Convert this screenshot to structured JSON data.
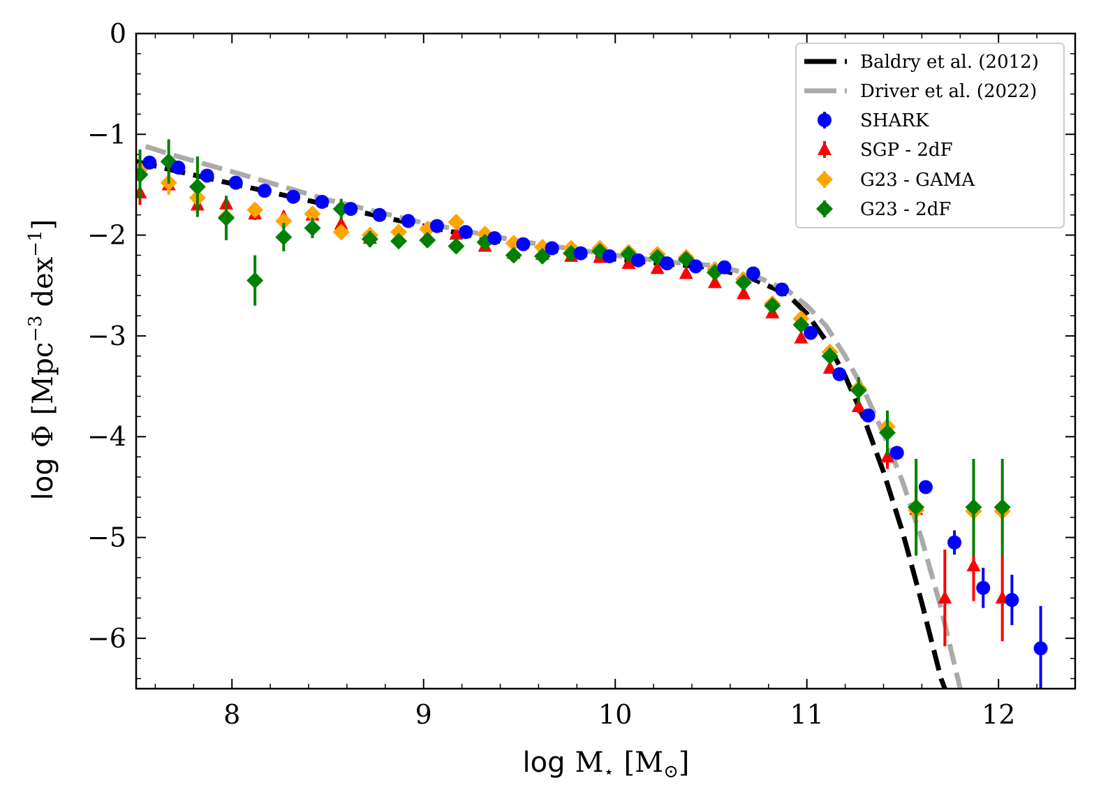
{
  "chart_data": {
    "type": "scatter",
    "title": "",
    "xlabel_parts": {
      "prefix": "log",
      "symbol": "M",
      "sub": "⋆",
      "unit_open": "[M",
      "unit_sub": "⊙",
      "unit_close": "]"
    },
    "ylabel_parts": {
      "prefix": "log",
      "symbol": "Φ",
      "unit_a": "[Mpc",
      "sup_a": "−3",
      "unit_b": "dex",
      "sup_b": "−1",
      "unit_close": "]"
    },
    "xlim": [
      7.5,
      12.4
    ],
    "ylim": [
      -6.5,
      0
    ],
    "xticks": [
      8,
      9,
      10,
      11,
      12
    ],
    "yticks": [
      0,
      -1,
      -2,
      -3,
      -4,
      -5,
      -6
    ],
    "xtick_labels": [
      "8",
      "9",
      "10",
      "11",
      "12"
    ],
    "ytick_labels": [
      "0",
      "−1",
      "−2",
      "−3",
      "−4",
      "−5",
      "−6"
    ],
    "legend_position": "top-right",
    "curves": [
      {
        "name": "Baldry et al. (2012)",
        "color": "#000000",
        "style": "dashed",
        "x": [
          7.5,
          7.7,
          8.0,
          8.5,
          9.0,
          9.5,
          10.0,
          10.3,
          10.5,
          10.7,
          10.9,
          11.0,
          11.1,
          11.2,
          11.3,
          11.4,
          11.5,
          11.6,
          11.7,
          11.73
        ],
        "y": [
          -1.27,
          -1.36,
          -1.49,
          -1.7,
          -1.91,
          -2.1,
          -2.24,
          -2.29,
          -2.32,
          -2.42,
          -2.59,
          -2.78,
          -3.05,
          -3.4,
          -3.83,
          -4.35,
          -4.95,
          -5.65,
          -6.4,
          -6.55
        ]
      },
      {
        "name": "Driver et al. (2022)",
        "color": "#aaaaaa",
        "style": "dashed",
        "x": [
          7.55,
          7.7,
          8.0,
          8.5,
          9.0,
          9.5,
          10.0,
          10.3,
          10.5,
          10.7,
          10.9,
          11.0,
          11.1,
          11.2,
          11.3,
          11.4,
          11.5,
          11.6,
          11.7,
          11.8
        ],
        "y": [
          -1.12,
          -1.21,
          -1.37,
          -1.65,
          -1.88,
          -2.06,
          -2.2,
          -2.27,
          -2.3,
          -2.38,
          -2.55,
          -2.7,
          -2.9,
          -3.2,
          -3.55,
          -3.97,
          -4.45,
          -5.02,
          -5.7,
          -6.5
        ]
      }
    ],
    "series": [
      {
        "name": "SHARK",
        "color": "#0000ff",
        "marker": "circle",
        "points": [
          {
            "x": 7.57,
            "y": -1.28,
            "err": 0.04
          },
          {
            "x": 7.72,
            "y": -1.33,
            "err": 0.04
          },
          {
            "x": 7.87,
            "y": -1.41,
            "err": 0.04
          },
          {
            "x": 8.02,
            "y": -1.48,
            "err": 0.03
          },
          {
            "x": 8.17,
            "y": -1.56,
            "err": 0.03
          },
          {
            "x": 8.32,
            "y": -1.62,
            "err": 0.03
          },
          {
            "x": 8.47,
            "y": -1.67,
            "err": 0.03
          },
          {
            "x": 8.62,
            "y": -1.74,
            "err": 0.03
          },
          {
            "x": 8.77,
            "y": -1.8,
            "err": 0.03
          },
          {
            "x": 8.92,
            "y": -1.86,
            "err": 0.03
          },
          {
            "x": 9.07,
            "y": -1.91,
            "err": 0.03
          },
          {
            "x": 9.22,
            "y": -1.97,
            "err": 0.03
          },
          {
            "x": 9.37,
            "y": -2.03,
            "err": 0.03
          },
          {
            "x": 9.52,
            "y": -2.09,
            "err": 0.03
          },
          {
            "x": 9.67,
            "y": -2.13,
            "err": 0.03
          },
          {
            "x": 9.82,
            "y": -2.18,
            "err": 0.03
          },
          {
            "x": 9.97,
            "y": -2.21,
            "err": 0.03
          },
          {
            "x": 10.12,
            "y": -2.25,
            "err": 0.03
          },
          {
            "x": 10.27,
            "y": -2.28,
            "err": 0.03
          },
          {
            "x": 10.42,
            "y": -2.31,
            "err": 0.03
          },
          {
            "x": 10.57,
            "y": -2.32,
            "err": 0.03
          },
          {
            "x": 10.72,
            "y": -2.38,
            "err": 0.03
          },
          {
            "x": 10.87,
            "y": -2.54,
            "err": 0.03
          },
          {
            "x": 11.02,
            "y": -2.97,
            "err": 0.03
          },
          {
            "x": 11.17,
            "y": -3.38,
            "err": 0.03
          },
          {
            "x": 11.32,
            "y": -3.79,
            "err": 0.04
          },
          {
            "x": 11.47,
            "y": -4.16,
            "err": 0.05
          },
          {
            "x": 11.62,
            "y": -4.5,
            "err": 0.06
          },
          {
            "x": 11.77,
            "y": -5.05,
            "err": 0.12
          },
          {
            "x": 11.92,
            "y": -5.5,
            "err": 0.2
          },
          {
            "x": 12.07,
            "y": -5.62,
            "err": 0.25
          },
          {
            "x": 12.22,
            "y": -6.1,
            "err": 0.42
          }
        ]
      },
      {
        "name": "SGP - 2dF",
        "color": "#ff0000",
        "marker": "triangle",
        "points": [
          {
            "x": 7.52,
            "y": -1.58,
            "err": 0.12
          },
          {
            "x": 7.67,
            "y": -1.5,
            "err": 0.08
          },
          {
            "x": 7.82,
            "y": -1.7,
            "err": 0.08
          },
          {
            "x": 7.97,
            "y": -1.69,
            "err": 0.08
          },
          {
            "x": 8.12,
            "y": -1.79,
            "err": 0.06
          },
          {
            "x": 8.27,
            "y": -1.82,
            "err": 0.06
          },
          {
            "x": 8.42,
            "y": -1.8,
            "err": 0.06
          },
          {
            "x": 8.57,
            "y": -1.89,
            "err": 0.05
          },
          {
            "x": 8.72,
            "y": -2.03,
            "err": 0.05
          },
          {
            "x": 8.87,
            "y": -2.02,
            "err": 0.04
          },
          {
            "x": 9.02,
            "y": -2.01,
            "err": 0.04
          },
          {
            "x": 9.17,
            "y": -1.99,
            "err": 0.04
          },
          {
            "x": 9.32,
            "y": -2.11,
            "err": 0.03
          },
          {
            "x": 9.47,
            "y": -2.18,
            "err": 0.03
          },
          {
            "x": 9.62,
            "y": -2.19,
            "err": 0.03
          },
          {
            "x": 9.77,
            "y": -2.21,
            "err": 0.03
          },
          {
            "x": 9.92,
            "y": -2.22,
            "err": 0.03
          },
          {
            "x": 10.07,
            "y": -2.28,
            "err": 0.03
          },
          {
            "x": 10.22,
            "y": -2.33,
            "err": 0.03
          },
          {
            "x": 10.37,
            "y": -2.38,
            "err": 0.03
          },
          {
            "x": 10.52,
            "y": -2.47,
            "err": 0.03
          },
          {
            "x": 10.67,
            "y": -2.58,
            "err": 0.03
          },
          {
            "x": 10.82,
            "y": -2.77,
            "err": 0.04
          },
          {
            "x": 10.97,
            "y": -3.02,
            "err": 0.04
          },
          {
            "x": 11.12,
            "y": -3.32,
            "err": 0.05
          },
          {
            "x": 11.27,
            "y": -3.7,
            "err": 0.07
          },
          {
            "x": 11.42,
            "y": -4.2,
            "err": 0.12
          },
          {
            "x": 11.57,
            "y": -4.72,
            "err": 0.22
          },
          {
            "x": 11.72,
            "y": -5.6,
            "err": 0.48
          },
          {
            "x": 11.87,
            "y": -5.28,
            "err": 0.35
          },
          {
            "x": 12.02,
            "y": -5.6,
            "err": 0.43
          }
        ]
      },
      {
        "name": "G23 - GAMA",
        "color": "#ffa500",
        "marker": "diamond",
        "points": [
          {
            "x": 7.52,
            "y": -1.35,
            "err": 0.1
          },
          {
            "x": 7.67,
            "y": -1.48,
            "err": 0.12
          },
          {
            "x": 7.82,
            "y": -1.63,
            "err": 0.08
          },
          {
            "x": 7.97,
            "y": -1.82,
            "err": 0.08
          },
          {
            "x": 8.12,
            "y": -1.75,
            "err": 0.06
          },
          {
            "x": 8.27,
            "y": -1.86,
            "err": 0.06
          },
          {
            "x": 8.42,
            "y": -1.79,
            "err": 0.05
          },
          {
            "x": 8.57,
            "y": -1.97,
            "err": 0.05
          },
          {
            "x": 8.72,
            "y": -2.0,
            "err": 0.04
          },
          {
            "x": 8.87,
            "y": -1.97,
            "err": 0.04
          },
          {
            "x": 9.02,
            "y": -1.94,
            "err": 0.04
          },
          {
            "x": 9.17,
            "y": -1.87,
            "err": 0.04
          },
          {
            "x": 9.32,
            "y": -1.99,
            "err": 0.03
          },
          {
            "x": 9.47,
            "y": -2.08,
            "err": 0.03
          },
          {
            "x": 9.62,
            "y": -2.12,
            "err": 0.03
          },
          {
            "x": 9.77,
            "y": -2.13,
            "err": 0.03
          },
          {
            "x": 9.92,
            "y": -2.13,
            "err": 0.03
          },
          {
            "x": 10.07,
            "y": -2.17,
            "err": 0.03
          },
          {
            "x": 10.22,
            "y": -2.19,
            "err": 0.03
          },
          {
            "x": 10.37,
            "y": -2.22,
            "err": 0.03
          },
          {
            "x": 10.52,
            "y": -2.34,
            "err": 0.03
          },
          {
            "x": 10.67,
            "y": -2.44,
            "err": 0.03
          },
          {
            "x": 10.82,
            "y": -2.68,
            "err": 0.04
          },
          {
            "x": 10.97,
            "y": -2.83,
            "err": 0.04
          },
          {
            "x": 11.12,
            "y": -3.16,
            "err": 0.05
          },
          {
            "x": 11.27,
            "y": -3.52,
            "err": 0.08
          },
          {
            "x": 11.42,
            "y": -3.9,
            "err": 0.1
          },
          {
            "x": 11.57,
            "y": -4.73,
            "err": 0.2
          },
          {
            "x": 11.87,
            "y": -4.74,
            "err": 0.3
          },
          {
            "x": 12.02,
            "y": -4.74,
            "err": 0.3
          }
        ]
      },
      {
        "name": "G23 - 2dF",
        "color": "#008000",
        "marker": "diamond",
        "points": [
          {
            "x": 7.52,
            "y": -1.4,
            "err": 0.25
          },
          {
            "x": 7.67,
            "y": -1.27,
            "err": 0.22
          },
          {
            "x": 7.82,
            "y": -1.52,
            "err": 0.3
          },
          {
            "x": 7.97,
            "y": -1.83,
            "err": 0.22
          },
          {
            "x": 8.12,
            "y": -2.45,
            "err": 0.25
          },
          {
            "x": 8.27,
            "y": -2.02,
            "err": 0.14
          },
          {
            "x": 8.42,
            "y": -1.93,
            "err": 0.1
          },
          {
            "x": 8.57,
            "y": -1.74,
            "err": 0.1
          },
          {
            "x": 8.72,
            "y": -2.04,
            "err": 0.08
          },
          {
            "x": 8.87,
            "y": -2.06,
            "err": 0.06
          },
          {
            "x": 9.02,
            "y": -2.05,
            "err": 0.05
          },
          {
            "x": 9.17,
            "y": -2.11,
            "err": 0.05
          },
          {
            "x": 9.32,
            "y": -2.07,
            "err": 0.04
          },
          {
            "x": 9.47,
            "y": -2.2,
            "err": 0.04
          },
          {
            "x": 9.62,
            "y": -2.21,
            "err": 0.04
          },
          {
            "x": 9.77,
            "y": -2.18,
            "err": 0.04
          },
          {
            "x": 9.92,
            "y": -2.16,
            "err": 0.04
          },
          {
            "x": 10.07,
            "y": -2.19,
            "err": 0.04
          },
          {
            "x": 10.22,
            "y": -2.22,
            "err": 0.04
          },
          {
            "x": 10.37,
            "y": -2.24,
            "err": 0.04
          },
          {
            "x": 10.52,
            "y": -2.37,
            "err": 0.04
          },
          {
            "x": 10.67,
            "y": -2.47,
            "err": 0.05
          },
          {
            "x": 10.82,
            "y": -2.7,
            "err": 0.05
          },
          {
            "x": 10.97,
            "y": -2.89,
            "err": 0.06
          },
          {
            "x": 11.12,
            "y": -3.2,
            "err": 0.08
          },
          {
            "x": 11.27,
            "y": -3.54,
            "err": 0.13
          },
          {
            "x": 11.42,
            "y": -3.96,
            "err": 0.22
          },
          {
            "x": 11.57,
            "y": -4.7,
            "err": 0.48
          },
          {
            "x": 11.87,
            "y": -4.7,
            "err": 0.48
          },
          {
            "x": 12.02,
            "y": -4.7,
            "err": 0.48
          }
        ]
      }
    ]
  }
}
